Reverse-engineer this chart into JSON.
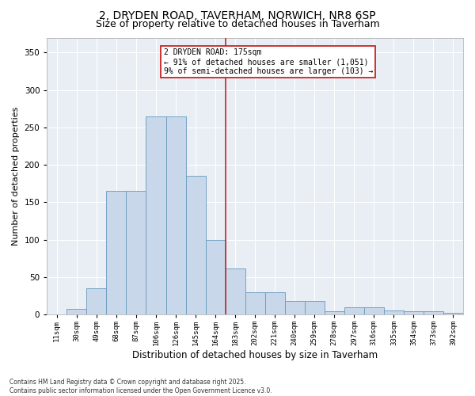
{
  "title": "2, DRYDEN ROAD, TAVERHAM, NORWICH, NR8 6SP",
  "subtitle": "Size of property relative to detached houses in Taverham",
  "xlabel": "Distribution of detached houses by size in Taverham",
  "ylabel": "Number of detached properties",
  "categories": [
    "11sqm",
    "30sqm",
    "49sqm",
    "68sqm",
    "87sqm",
    "106sqm",
    "126sqm",
    "145sqm",
    "164sqm",
    "183sqm",
    "202sqm",
    "221sqm",
    "240sqm",
    "259sqm",
    "278sqm",
    "297sqm",
    "316sqm",
    "335sqm",
    "354sqm",
    "373sqm",
    "392sqm"
  ],
  "values": [
    0,
    8,
    35,
    165,
    165,
    265,
    265,
    185,
    100,
    62,
    30,
    30,
    18,
    18,
    5,
    10,
    10,
    6,
    5,
    4,
    2
  ],
  "bar_color": "#c8d8ea",
  "bar_edge_color": "#6699bb",
  "vline_color": "#cc2222",
  "annotation_text": "2 DRYDEN ROAD: 175sqm\n← 91% of detached houses are smaller (1,051)\n9% of semi-detached houses are larger (103) →",
  "annotation_box_color": "#cc2222",
  "ylim": [
    0,
    370
  ],
  "yticks": [
    0,
    50,
    100,
    150,
    200,
    250,
    300,
    350
  ],
  "background_color": "#e8eef4",
  "footer": "Contains HM Land Registry data © Crown copyright and database right 2025.\nContains public sector information licensed under the Open Government Licence v3.0.",
  "title_fontsize": 10,
  "subtitle_fontsize": 9,
  "xlabel_fontsize": 8.5,
  "ylabel_fontsize": 8
}
